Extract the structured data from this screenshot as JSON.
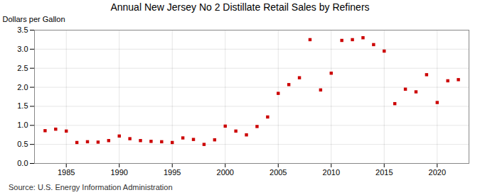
{
  "chart_data": {
    "type": "scatter",
    "title": "Annual New Jersey No 2 Distillate Retail Sales by Refiners",
    "ylabel": "Dollars per Gallon",
    "source": "Source: U.S. Energy Information Administration",
    "x": [
      1983,
      1984,
      1985,
      1986,
      1987,
      1988,
      1989,
      1990,
      1991,
      1992,
      1993,
      1994,
      1995,
      1996,
      1997,
      1998,
      1999,
      2000,
      2001,
      2002,
      2003,
      2004,
      2005,
      2006,
      2007,
      2008,
      2009,
      2010,
      2011,
      2012,
      2013,
      2014,
      2015,
      2016,
      2017,
      2018,
      2019,
      2020,
      2021,
      2022
    ],
    "values": [
      0.86,
      0.9,
      0.85,
      0.55,
      0.57,
      0.56,
      0.6,
      0.72,
      0.65,
      0.6,
      0.58,
      0.57,
      0.55,
      0.67,
      0.63,
      0.5,
      0.62,
      0.98,
      0.85,
      0.75,
      0.97,
      1.22,
      1.84,
      2.07,
      2.25,
      3.25,
      1.93,
      2.37,
      3.23,
      3.25,
      3.3,
      3.12,
      2.95,
      1.57,
      1.95,
      1.88,
      2.33,
      1.6,
      2.17,
      2.2
    ],
    "color": "#cc0000",
    "marker": "square",
    "xlim": [
      1982,
      2023
    ],
    "xticks": [
      1985,
      1990,
      1995,
      2000,
      2005,
      2010,
      2015,
      2020
    ],
    "ylim": [
      0.0,
      3.5
    ],
    "yticks": [
      {
        "value": 0,
        "label": "0.0"
      },
      0.5,
      {
        "value": 1,
        "label": "1.0"
      },
      1.5,
      {
        "value": 2,
        "label": "2.0"
      },
      2.5,
      {
        "value": 3,
        "label": "3.0"
      },
      3.5
    ],
    "grid": true
  }
}
